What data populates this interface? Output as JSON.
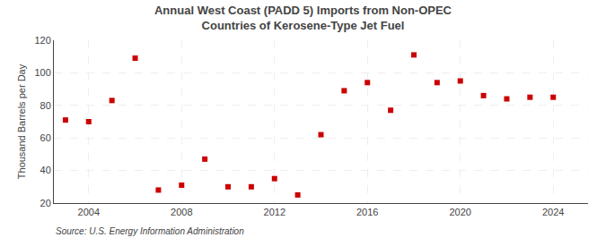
{
  "chart_data": {
    "type": "scatter",
    "title": "Annual West Coast (PADD 5) Imports from Non-OPEC Countries of Kerosene-Type Jet Fuel",
    "ylabel": "Thousand Barrels per Day",
    "source": "Source: U.S. Energy Information Administration",
    "x": [
      2003,
      2004,
      2005,
      2006,
      2007,
      2008,
      2009,
      2010,
      2011,
      2012,
      2013,
      2014,
      2015,
      2016,
      2017,
      2018,
      2019,
      2020,
      2021,
      2022,
      2023,
      2024
    ],
    "values": [
      71,
      70,
      83,
      109,
      28,
      31,
      47,
      30,
      30,
      35,
      25,
      62,
      89,
      94,
      77,
      111,
      94,
      95,
      86,
      84,
      85,
      85
    ],
    "color": "#cc0000",
    "marker": "square",
    "xlim": [
      2002.5,
      2025.5
    ],
    "xticks": [
      2004,
      2008,
      2012,
      2016,
      2020,
      2024
    ],
    "ylim": [
      20,
      120
    ],
    "yticks": [
      20,
      40,
      60,
      80,
      100,
      120
    ],
    "grid": true
  }
}
